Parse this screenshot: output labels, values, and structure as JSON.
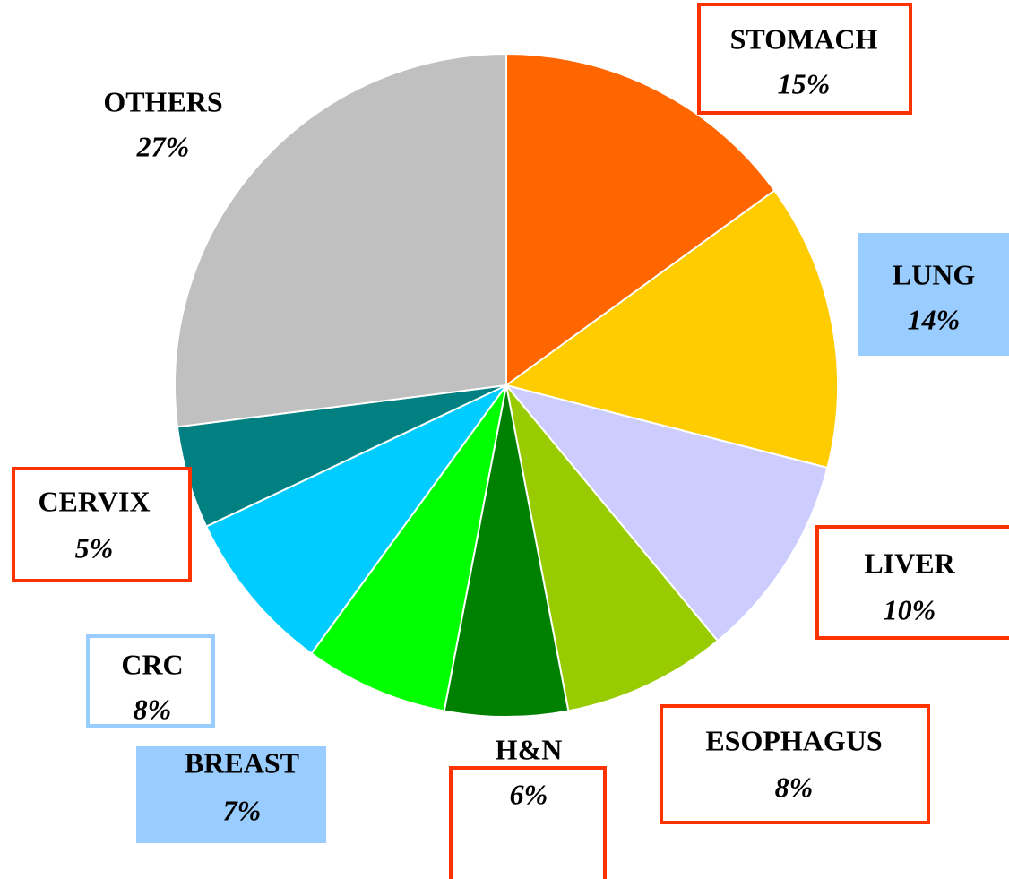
{
  "chart_data": {
    "type": "pie",
    "categories": [
      "STOMACH",
      "LUNG",
      "LIVER",
      "ESOPHAGUS",
      "H&N",
      "BREAST",
      "CRC",
      "CERVIX",
      "OTHERS"
    ],
    "values": [
      15,
      14,
      10,
      8,
      6,
      7,
      8,
      5,
      27
    ],
    "value_labels": [
      "15%",
      "14%",
      "10%",
      "8%",
      "6%",
      "7%",
      "8%",
      "5%",
      "27%"
    ],
    "colors": [
      "#ff6600",
      "#ffcc00",
      "#ccccff",
      "#99cc00",
      "#008000",
      "#00ff00",
      "#00ccff",
      "#008080",
      "#c0c0c0"
    ]
  }
}
